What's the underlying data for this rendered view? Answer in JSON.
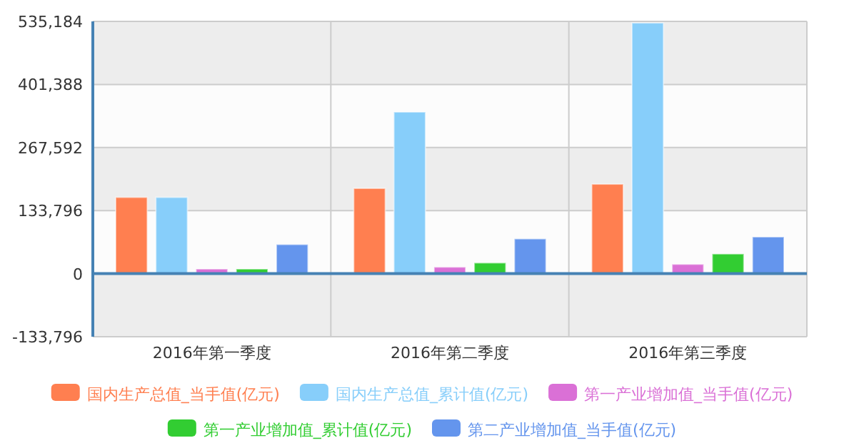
{
  "chart_data": {
    "type": "bar",
    "categories": [
      "2016年第一季度",
      "2016年第二季度",
      "2016年第三季度"
    ],
    "series": [
      {
        "name": "国内生产总值_当手值(亿元)",
        "color": "#ff7f50",
        "values": [
          162000,
          181000,
          190000
        ]
      },
      {
        "name": "国内生产总值_累计值(亿元)",
        "color": "#87cefa",
        "values": [
          162000,
          343000,
          532000
        ]
      },
      {
        "name": "第一产业增加值_当手值(亿元)",
        "color": "#da70d6",
        "values": [
          10000,
          14000,
          20000
        ]
      },
      {
        "name": "第一产业增加值_累计值(亿元)",
        "color": "#32cd32",
        "values": [
          10000,
          23000,
          42000
        ]
      },
      {
        "name": "第二产业增加值_当手值(亿元)",
        "color": "#6495ed",
        "values": [
          62000,
          74000,
          78000
        ]
      }
    ],
    "ylim": [
      -133796,
      535184
    ],
    "yticks": [
      {
        "value": -133796,
        "label": "-133,796"
      },
      0,
      {
        "value": 133796,
        "label": "133,796"
      },
      {
        "value": 267592,
        "label": "267,592"
      },
      {
        "value": 401388,
        "label": "401,388"
      },
      {
        "value": 535184,
        "label": "535,184"
      }
    ],
    "ref_lines": [
      {
        "axis": "y",
        "value": 0,
        "color": "#4682b4"
      }
    ],
    "grid": true,
    "legend": "bottom"
  }
}
